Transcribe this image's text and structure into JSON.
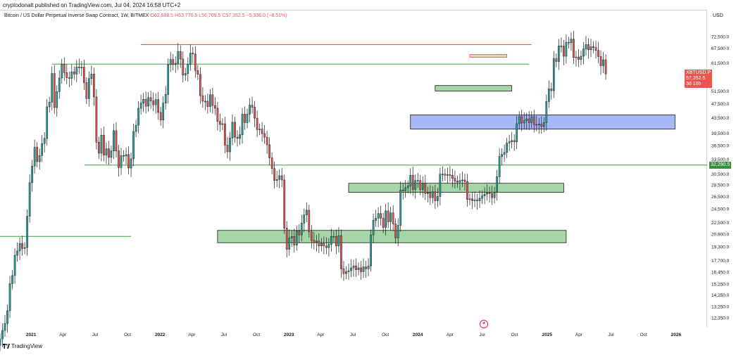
{
  "header": {
    "published_by": "cryptodonalt published on TradingView.com, Jul 04, 2024 16:58 UTC+2"
  },
  "legend": {
    "symbol": "Bitcoin / US Dollar Perpetual Inverse Swap Contract, 1W, BITMEX",
    "ohlc": "O62,688.5 H63,770.5 L56,709.5 C57,352.5 −5,336.0 (−8.51%)"
  },
  "axis": {
    "currency": "USD"
  },
  "price_tags": {
    "current_symbol": "XBTUSD.P",
    "current_price": "57,352.5",
    "countdown": "3d 10h",
    "level_price": "32,290.5"
  },
  "footer": {
    "brand": "TradingView"
  },
  "colors": {
    "up": "#26a69a",
    "down": "#ef5350",
    "zone_green": "#a5d6a7",
    "zone_blue": "#a6b8f5",
    "line_green": "#4caf50",
    "line_red": "#ef5350"
  },
  "chart_data": {
    "type": "candlestick",
    "title": "Bitcoin / US Dollar Perpetual Inverse Swap Contract, 1W, BITMEX",
    "timeframe": "1W",
    "y_scale": "log",
    "ylim": [
      11600,
      80000
    ],
    "y_ticks": [
      {
        "value": 72500,
        "label": "72,500.0"
      },
      {
        "value": 67500,
        "label": "67,500.0"
      },
      {
        "value": 61500,
        "label": "61,500.0"
      },
      {
        "value": 51500,
        "label": "51,500.0"
      },
      {
        "value": 47500,
        "label": "47,500.0"
      },
      {
        "value": 43500,
        "label": "43,500.0"
      },
      {
        "value": 39500,
        "label": "39,500.0"
      },
      {
        "value": 36500,
        "label": "36,500.0"
      },
      {
        "value": 33500,
        "label": "33,500.0"
      },
      {
        "value": 30500,
        "label": "30,500.0"
      },
      {
        "value": 28500,
        "label": "28,500.0"
      },
      {
        "value": 26500,
        "label": "26,500.0"
      },
      {
        "value": 24500,
        "label": "24,500.0"
      },
      {
        "value": 22500,
        "label": "22,500.0"
      },
      {
        "value": 20900,
        "label": "20,900.0"
      },
      {
        "value": 19300,
        "label": "19,300.0"
      },
      {
        "value": 17700,
        "label": "17,700.0"
      },
      {
        "value": 16450,
        "label": "16,450.0"
      },
      {
        "value": 15250,
        "label": "15,250.0"
      },
      {
        "value": 14250,
        "label": "14,250.0"
      },
      {
        "value": 13250,
        "label": "13,250.0"
      },
      {
        "value": 12350,
        "label": "12,350.0"
      }
    ],
    "x_range": [
      "2020-10-05",
      "2026-03-30"
    ],
    "x_ticks": [
      {
        "date": "2021-01-01",
        "label": "2021",
        "bold": true
      },
      {
        "date": "2021-04-01",
        "label": "Apr"
      },
      {
        "date": "2021-07-01",
        "label": "Jul"
      },
      {
        "date": "2021-10-01",
        "label": "Oct"
      },
      {
        "date": "2022-01-01",
        "label": "2022",
        "bold": true
      },
      {
        "date": "2022-04-01",
        "label": "Apr"
      },
      {
        "date": "2022-07-01",
        "label": "Jul"
      },
      {
        "date": "2022-10-01",
        "label": "Oct"
      },
      {
        "date": "2023-01-01",
        "label": "2023",
        "bold": true
      },
      {
        "date": "2023-04-01",
        "label": "Apr"
      },
      {
        "date": "2023-07-01",
        "label": "Jul"
      },
      {
        "date": "2023-10-01",
        "label": "Oct"
      },
      {
        "date": "2024-01-01",
        "label": "2024",
        "bold": true
      },
      {
        "date": "2024-04-01",
        "label": "Apr"
      },
      {
        "date": "2024-07-01",
        "label": "Jul"
      },
      {
        "date": "2024-10-01",
        "label": "Oct"
      },
      {
        "date": "2025-01-01",
        "label": "2025",
        "bold": true
      },
      {
        "date": "2025-04-01",
        "label": "Apr"
      },
      {
        "date": "2025-07-01",
        "label": "Jul"
      },
      {
        "date": "2025-10-01",
        "label": "Oct"
      },
      {
        "date": "2026-01-01",
        "label": "2026",
        "bold": true
      }
    ],
    "series": [
      {
        "start_date": "2020-10-05",
        "interval": "1W",
        "close": [
          10800,
          11400,
          11900,
          12900,
          15300,
          16100,
          18300,
          18800,
          19700,
          19100,
          19200,
          23400,
          28900,
          32100,
          36100,
          33000,
          34300,
          37000,
          38200,
          46600,
          48000,
          57500,
          46400,
          51300,
          55900,
          61000,
          57800,
          56000,
          55800,
          58100,
          57300,
          59900,
          59800,
          59800,
          54300,
          49100,
          55700,
          57300,
          49600,
          37300,
          34800,
          39000,
          34400,
          35800,
          33900,
          35300,
          40100,
          35300,
          31800,
          34300,
          34200,
          34500,
          31700,
          33600,
          39900,
          41500,
          46200,
          47700,
          48900,
          46800,
          49400,
          48400,
          47200,
          48800,
          45000,
          42900,
          47700,
          50400,
          60800,
          62800,
          60800,
          61300,
          66000,
          63000,
          56900,
          57500,
          60900,
          65400,
          65000,
          58600,
          57200,
          50000,
          48300,
          48300,
          46700,
          50300,
          47000,
          46200,
          42500,
          41700,
          41900,
          36600,
          35100,
          38300,
          42300,
          38500,
          38200,
          39100,
          44500,
          42200,
          44500,
          47100,
          46500,
          43400,
          40400,
          40500,
          39400,
          38500,
          36700,
          33800,
          31600,
          29300,
          29500,
          30200,
          29400,
          21700,
          19000,
          20400,
          20600,
          19500,
          21300,
          20800,
          22400,
          23600,
          24300,
          21200,
          20100,
          19800,
          20000,
          19400,
          19700,
          19400,
          19200,
          19600,
          20600,
          20600,
          19400,
          20700,
          16800,
          16300,
          16500,
          16600,
          16900,
          17100,
          16700,
          16900,
          16500,
          17000,
          16800,
          17100,
          20800,
          22800,
          23100,
          23800,
          23100,
          21800,
          24200,
          22600,
          23900,
          22300,
          20400,
          22100,
          27600,
          27500,
          28000,
          28300,
          30300,
          27700,
          29300,
          29300,
          27700,
          28800,
          27000,
          27100,
          26300,
          27300,
          25800,
          26500,
          30500,
          30500,
          30300,
          30400,
          30300,
          29700,
          29200,
          29000,
          29300,
          29400,
          29100,
          26000,
          26100,
          25800,
          25900,
          25800,
          26200,
          26600,
          26900,
          27100,
          27000,
          26300,
          27200,
          30000,
          34100,
          34500,
          35000,
          37100,
          37400,
          37700,
          37400,
          41900,
          43800,
          42100,
          42700,
          43200,
          42200,
          43800,
          41700,
          41600,
          41800,
          41200,
          42200,
          48200,
          52200,
          51600,
          63100,
          62000,
          68400,
          68300,
          64100,
          70000,
          69800,
          71400,
          63600,
          63800,
          62800,
          64100,
          67100,
          69000,
          66800,
          68100,
          67700,
          66500,
          64000,
          60400,
          62700,
          57352.5
        ]
      }
    ],
    "horizontal_lines": [
      {
        "value": 69000,
        "color": "red",
        "from": "2021-11-08",
        "to": "2024-11-18"
      },
      {
        "value": 61000,
        "color": "green",
        "from": "2021-03-01",
        "to": "2024-11-11"
      },
      {
        "value": 32290.5,
        "color": "green",
        "from": "2021-06-01",
        "to": "2026-03-30"
      },
      {
        "value": 20600,
        "color": "green",
        "from": "2020-10-05",
        "to": "2021-10-11"
      }
    ],
    "zones": [
      {
        "kind": "supply",
        "color": "red",
        "from": "2024-05-27",
        "to": "2024-09-09",
        "low": 63700,
        "high": 64800
      },
      {
        "kind": "demand",
        "color": "green",
        "from": "2024-02-19",
        "to": "2024-09-23",
        "low": 51500,
        "high": 53300
      },
      {
        "kind": "demand",
        "color": "blue",
        "from": "2023-12-11",
        "to": "2025-12-29",
        "low": 40500,
        "high": 44300
      },
      {
        "kind": "demand",
        "color": "green",
        "from": "2023-06-19",
        "to": "2025-02-17",
        "low": 27200,
        "high": 28800
      },
      {
        "kind": "demand",
        "color": "green",
        "from": "2022-06-13",
        "to": "2025-02-24",
        "low": 19800,
        "high": 21400
      }
    ],
    "grid": false
  }
}
